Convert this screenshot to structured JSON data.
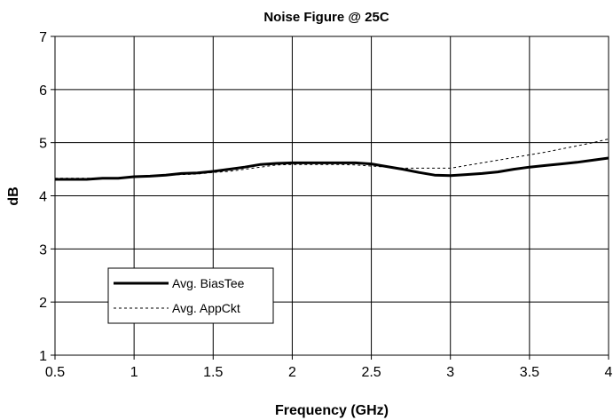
{
  "chart_data": {
    "type": "line",
    "title": "Noise Figure @ 25C",
    "xlabel": "Frequency (GHz)",
    "ylabel": "dB",
    "xlim": [
      0.5,
      4
    ],
    "ylim": [
      1,
      7
    ],
    "xticks": [
      "0.5",
      "1",
      "1.5",
      "2",
      "2.5",
      "3",
      "3.5",
      "4"
    ],
    "yticks": [
      "1",
      "2",
      "3",
      "4",
      "5",
      "6",
      "7"
    ],
    "grid": true,
    "legend_position": "lower-left",
    "series": [
      {
        "name": "Avg. BiasTee",
        "style": "solid",
        "color": "#000000",
        "x": [
          0.5,
          0.6,
          0.7,
          0.8,
          0.9,
          1.0,
          1.1,
          1.2,
          1.3,
          1.4,
          1.5,
          1.6,
          1.7,
          1.8,
          1.9,
          2.0,
          2.1,
          2.2,
          2.3,
          2.4,
          2.5,
          2.6,
          2.7,
          2.8,
          2.9,
          3.0,
          3.1,
          3.2,
          3.3,
          3.4,
          3.5,
          3.6,
          3.7,
          3.8,
          3.9,
          4.0
        ],
        "y": [
          4.31,
          4.31,
          4.31,
          4.33,
          4.33,
          4.36,
          4.37,
          4.39,
          4.42,
          4.43,
          4.46,
          4.5,
          4.54,
          4.59,
          4.61,
          4.62,
          4.62,
          4.62,
          4.62,
          4.62,
          4.6,
          4.55,
          4.5,
          4.44,
          4.39,
          4.38,
          4.4,
          4.42,
          4.45,
          4.5,
          4.54,
          4.57,
          4.6,
          4.63,
          4.67,
          4.71
        ]
      },
      {
        "name": "Avg. AppCkt",
        "style": "dashed",
        "color": "#000000",
        "x": [
          0.5,
          0.6,
          0.7,
          0.8,
          0.9,
          1.0,
          1.1,
          1.2,
          1.3,
          1.4,
          1.5,
          1.6,
          1.7,
          1.8,
          1.9,
          2.0,
          2.1,
          2.2,
          2.3,
          2.4,
          2.5,
          2.6,
          2.7,
          2.8,
          2.9,
          3.0,
          3.1,
          3.2,
          3.3,
          3.4,
          3.5,
          3.6,
          3.7,
          3.8,
          3.9,
          4.0
        ],
        "y": [
          4.33,
          4.33,
          4.33,
          4.34,
          4.34,
          4.35,
          4.37,
          4.39,
          4.4,
          4.41,
          4.44,
          4.46,
          4.5,
          4.54,
          4.58,
          4.59,
          4.59,
          4.59,
          4.59,
          4.58,
          4.56,
          4.54,
          4.52,
          4.52,
          4.52,
          4.52,
          4.57,
          4.62,
          4.67,
          4.72,
          4.77,
          4.82,
          4.88,
          4.94,
          5.0,
          5.07
        ]
      }
    ]
  }
}
